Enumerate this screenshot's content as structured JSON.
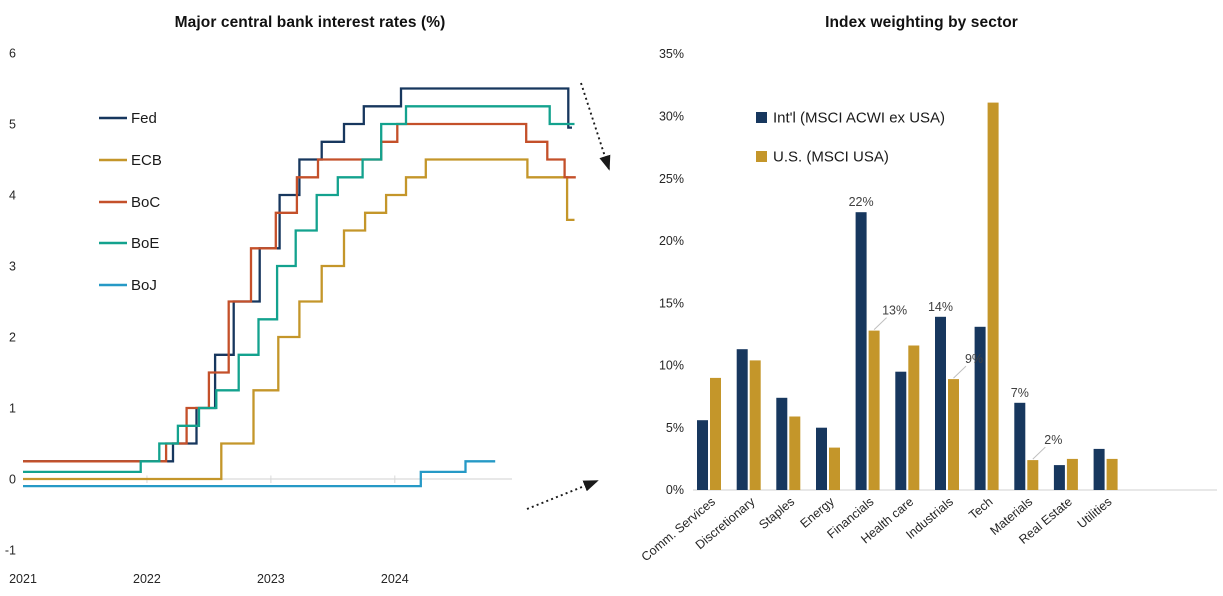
{
  "page": {
    "background": "#ffffff"
  },
  "left_chart": {
    "title": "Major central bank interest rates (%)",
    "y_axis": {
      "min": -1,
      "max": 6,
      "tick_labels": [
        "6",
        "5",
        "4",
        "3",
        "2",
        "1",
        "0",
        "-1"
      ],
      "tick_values": [
        6,
        5,
        4,
        3,
        2,
        1,
        0,
        -1
      ]
    },
    "x_axis": {
      "tick_labels": [
        "2021",
        "2022",
        "2023",
        "2024"
      ],
      "tick_values": [
        2021,
        2022,
        2023,
        2024
      ]
    },
    "annotations": [
      {
        "name": "peak-rates-falling-arrow",
        "direction": "down-right"
      },
      {
        "name": "boj-rates-rising-arrow",
        "direction": "up-right"
      }
    ]
  },
  "right_chart": {
    "title": "Index weighting by sector",
    "y_axis": {
      "min": 0,
      "max": 35,
      "tick_labels": [
        "0%",
        "5%",
        "10%",
        "15%",
        "20%",
        "25%",
        "30%",
        "35%"
      ],
      "tick_values": [
        0,
        5,
        10,
        15,
        20,
        25,
        30,
        35
      ]
    }
  },
  "chart_data": [
    {
      "type": "line",
      "title": "Major central bank interest rates (%)",
      "xlabel": "",
      "ylabel": "",
      "x_range": [
        2021,
        2025.47
      ],
      "y_range": [
        -1,
        6
      ],
      "x_ticks": [
        2021,
        2022,
        2023,
        2024
      ],
      "grid": false,
      "legend_position": "upper-left-inside",
      "series": [
        {
          "name": "Fed",
          "color": "#17375E",
          "step": true,
          "end_x": 2025.43,
          "points": [
            [
              2021,
              0.25
            ],
            [
              2022.21,
              0.5
            ],
            [
              2022.4,
              1.0
            ],
            [
              2022.55,
              1.75
            ],
            [
              2022.7,
              2.5
            ],
            [
              2022.91,
              3.25
            ],
            [
              2023.07,
              4.0
            ],
            [
              2023.23,
              4.5
            ],
            [
              2023.41,
              4.75
            ],
            [
              2023.59,
              5.0
            ],
            [
              2023.75,
              5.25
            ],
            [
              2024.05,
              5.5
            ],
            [
              2025.4,
              4.95
            ]
          ]
        },
        {
          "name": "ECB",
          "color": "#C4962A",
          "step": true,
          "end_x": 2025.45,
          "points": [
            [
              2021,
              0.0
            ],
            [
              2022.6,
              0.5
            ],
            [
              2022.86,
              1.25
            ],
            [
              2023.06,
              2.0
            ],
            [
              2023.23,
              2.5
            ],
            [
              2023.41,
              3.0
            ],
            [
              2023.59,
              3.5
            ],
            [
              2023.76,
              3.75
            ],
            [
              2023.93,
              4.0
            ],
            [
              2024.09,
              4.25
            ],
            [
              2024.25,
              4.5
            ],
            [
              2025.07,
              4.25
            ],
            [
              2025.39,
              3.65
            ]
          ]
        },
        {
          "name": "BoC",
          "color": "#C4502A",
          "step": true,
          "end_x": 2025.46,
          "points": [
            [
              2021,
              0.25
            ],
            [
              2022.155,
              0.5
            ],
            [
              2022.32,
              1.0
            ],
            [
              2022.5,
              1.5
            ],
            [
              2022.66,
              2.5
            ],
            [
              2022.84,
              3.25
            ],
            [
              2023.04,
              3.75
            ],
            [
              2023.21,
              4.25
            ],
            [
              2023.38,
              4.5
            ],
            [
              2023.89,
              4.75
            ],
            [
              2024.02,
              5.0
            ],
            [
              2025.06,
              4.75
            ],
            [
              2025.23,
              4.5
            ],
            [
              2025.37,
              4.25
            ]
          ]
        },
        {
          "name": "BoE",
          "color": "#13A28E",
          "step": true,
          "end_x": 2025.45,
          "points": [
            [
              2021,
              0.1
            ],
            [
              2021.95,
              0.25
            ],
            [
              2022.1,
              0.5
            ],
            [
              2022.25,
              0.75
            ],
            [
              2022.42,
              1.0
            ],
            [
              2022.56,
              1.25
            ],
            [
              2022.74,
              1.75
            ],
            [
              2022.9,
              2.25
            ],
            [
              2023.05,
              3.0
            ],
            [
              2023.2,
              3.5
            ],
            [
              2023.37,
              4.0
            ],
            [
              2023.54,
              4.25
            ],
            [
              2023.74,
              4.5
            ],
            [
              2023.89,
              5.0
            ],
            [
              2024.09,
              5.25
            ],
            [
              2025.25,
              5.0
            ]
          ]
        },
        {
          "name": "BoJ",
          "color": "#2699C6",
          "step": true,
          "end_x": 2024.81,
          "points": [
            [
              2021,
              -0.1
            ],
            [
              2024.21,
              0.1
            ],
            [
              2024.57,
              0.25
            ]
          ]
        }
      ]
    },
    {
      "type": "bar",
      "title": "Index weighting by sector",
      "xlabel": "",
      "ylabel": "",
      "ylim": [
        0,
        35
      ],
      "y_tick_step": 5,
      "grid": false,
      "legend_position": "upper-left-inside",
      "categories": [
        "Comm. Services",
        "Discretionary",
        "Staples",
        "Energy",
        "Financials",
        "Health care",
        "Industrials",
        "Tech",
        "Materials",
        "Real Estate",
        "Utilities"
      ],
      "series": [
        {
          "name": "Int'l (MSCI ACWI ex USA)",
          "color": "#17375E",
          "values": [
            5.6,
            11.3,
            7.4,
            5.0,
            22.3,
            9.5,
            13.9,
            13.1,
            7.0,
            2.0,
            3.3
          ]
        },
        {
          "name": "U.S. (MSCI USA)",
          "color": "#C4962A",
          "values": [
            9.0,
            10.4,
            5.9,
            3.4,
            12.8,
            11.6,
            8.9,
            31.1,
            2.4,
            2.5,
            2.5
          ]
        }
      ],
      "data_labels": [
        {
          "category_index": 4,
          "series_index": 0,
          "text": "22%",
          "style": "above"
        },
        {
          "category_index": 4,
          "series_index": 1,
          "text": "13%",
          "style": "callout"
        },
        {
          "category_index": 6,
          "series_index": 0,
          "text": "14%",
          "style": "above"
        },
        {
          "category_index": 6,
          "series_index": 1,
          "text": "9%",
          "style": "callout"
        },
        {
          "category_index": 8,
          "series_index": 0,
          "text": "7%",
          "style": "above"
        },
        {
          "category_index": 8,
          "series_index": 1,
          "text": "2%",
          "style": "callout"
        }
      ]
    }
  ]
}
